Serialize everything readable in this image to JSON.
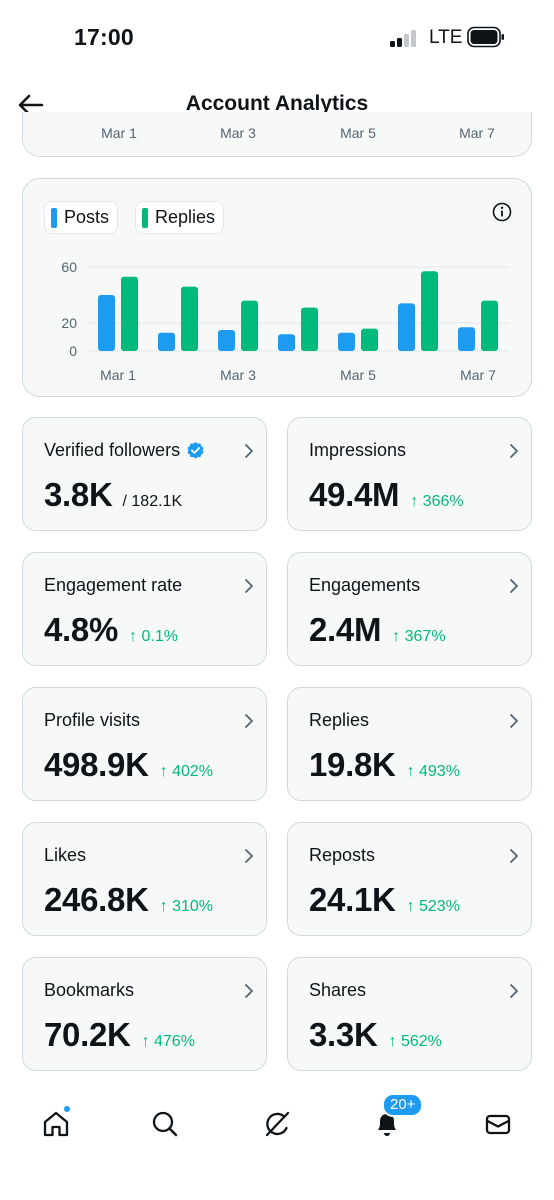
{
  "status": {
    "time": "17:00",
    "carrier": "LTE"
  },
  "header": {
    "title": "Account Analytics"
  },
  "prev_chart": {
    "ticks": [
      "Mar 1",
      "Mar 3",
      "Mar 5",
      "Mar 7"
    ]
  },
  "chart_data": {
    "type": "bar",
    "categories": [
      "Mar 1",
      "Mar 2",
      "Mar 3",
      "Mar 4",
      "Mar 5",
      "Mar 6",
      "Mar 7"
    ],
    "x_tick_labels": [
      "Mar 1",
      "Mar 3",
      "Mar 5",
      "Mar 7"
    ],
    "series": [
      {
        "name": "Posts",
        "values": [
          40,
          13,
          15,
          12,
          13,
          34,
          17
        ],
        "color": "#1d9bf0"
      },
      {
        "name": "Replies",
        "values": [
          53,
          46,
          36,
          31,
          16,
          57,
          36
        ],
        "color": "#00ba7c"
      }
    ],
    "y_ticks": [
      0,
      20,
      60
    ],
    "ylim": [
      0,
      65
    ],
    "grid": true,
    "legend_position": "top-left"
  },
  "legend": {
    "posts": "Posts",
    "replies": "Replies"
  },
  "metrics": [
    {
      "label": "Verified followers",
      "value": "3.8K",
      "sub": "/ 182.1K",
      "change": "",
      "verified": true
    },
    {
      "label": "Impressions",
      "value": "49.4M",
      "sub": "",
      "change": "↑ 366%"
    },
    {
      "label": "Engagement rate",
      "value": "4.8%",
      "sub": "",
      "change": "↑ 0.1%"
    },
    {
      "label": "Engagements",
      "value": "2.4M",
      "sub": "",
      "change": "↑ 367%"
    },
    {
      "label": "Profile visits",
      "value": "498.9K",
      "sub": "",
      "change": "↑ 402%"
    },
    {
      "label": "Replies",
      "value": "19.8K",
      "sub": "",
      "change": "↑ 493%"
    },
    {
      "label": "Likes",
      "value": "246.8K",
      "sub": "",
      "change": "↑ 310%"
    },
    {
      "label": "Reposts",
      "value": "24.1K",
      "sub": "",
      "change": "↑ 523%"
    },
    {
      "label": "Bookmarks",
      "value": "70.2K",
      "sub": "",
      "change": "↑ 476%"
    },
    {
      "label": "Shares",
      "value": "3.3K",
      "sub": "",
      "change": "↑ 562%"
    }
  ],
  "tabbar": {
    "items": [
      "home-icon",
      "search-icon",
      "grok-icon",
      "notifications-icon",
      "messages-icon"
    ],
    "notifications_badge": "20+"
  },
  "colors": {
    "accent": "#1d9bf0",
    "positive": "#00ba7c",
    "text": "#0f1419",
    "muted": "#536471"
  }
}
